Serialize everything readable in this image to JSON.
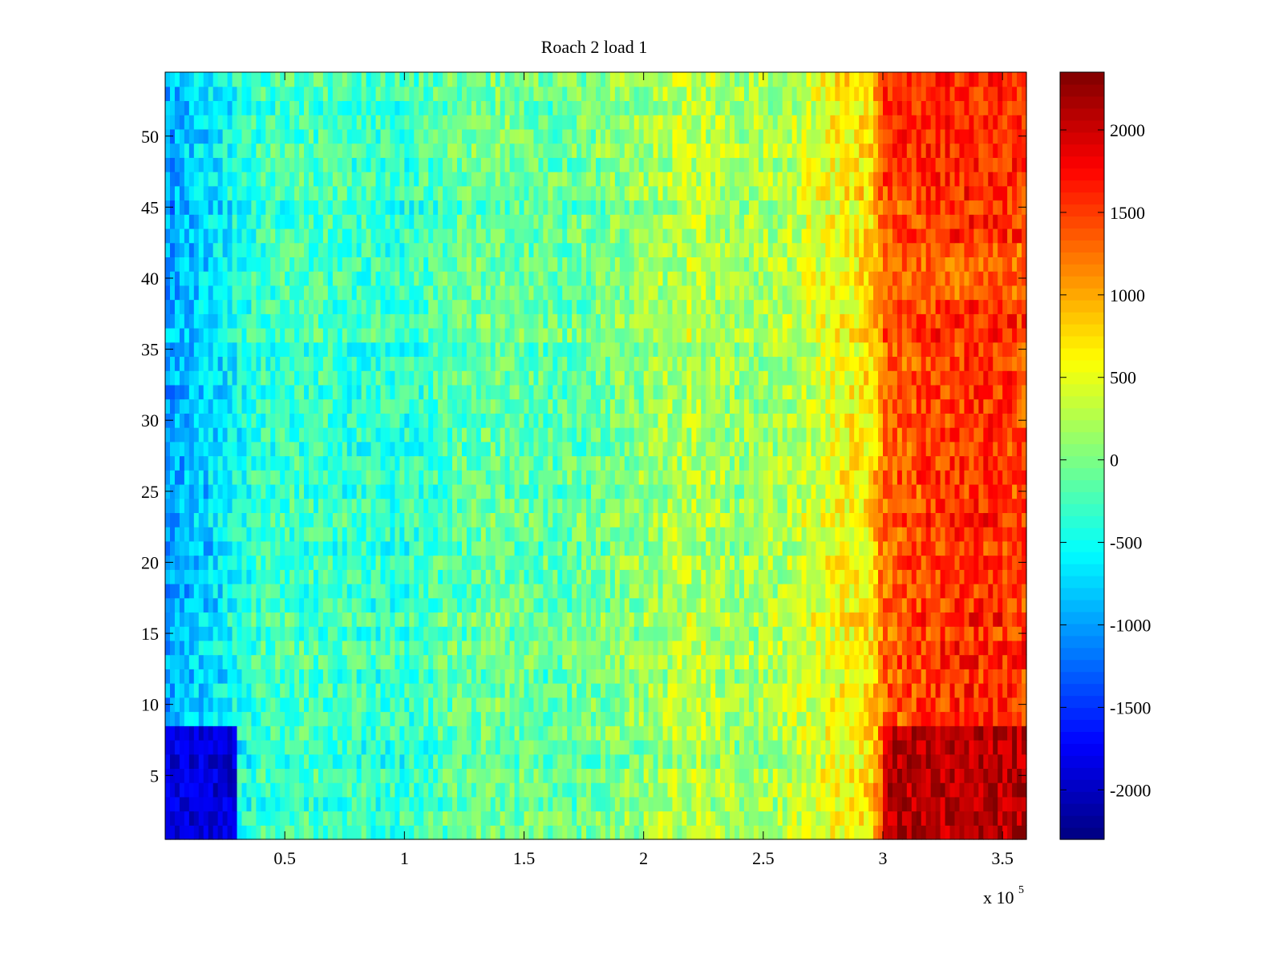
{
  "chart_data": {
    "type": "heatmap",
    "title": "Roach 2 load 1",
    "xlabel": "",
    "ylabel": "",
    "x_range": [
      0,
      360000
    ],
    "y_range": [
      0.5,
      54.5
    ],
    "x_ticks": [
      50000,
      100000,
      150000,
      200000,
      250000,
      300000,
      350000
    ],
    "x_tick_labels": [
      "0.5",
      "1",
      "1.5",
      "2",
      "2.5",
      "3",
      "3.5"
    ],
    "x_exponent_base": "x 10",
    "x_exponent": "5",
    "y_ticks": [
      5,
      10,
      15,
      20,
      25,
      30,
      35,
      40,
      45,
      50
    ],
    "y_tick_labels": [
      "5",
      "10",
      "15",
      "20",
      "25",
      "30",
      "35",
      "40",
      "45",
      "50"
    ],
    "rows": 54,
    "colormap": "jet",
    "color_range": [
      -2300,
      2350
    ],
    "colorbar_ticks": [
      -2000,
      -1500,
      -1000,
      -500,
      0,
      500,
      1000,
      1500,
      2000
    ],
    "colorbar_tick_labels": [
      "-2000",
      "-1500",
      "-1000",
      "-500",
      "0",
      "500",
      "1000",
      "1500",
      "2000"
    ],
    "column_profile": {
      "x": [
        0,
        20000,
        40000,
        60000,
        80000,
        100000,
        120000,
        140000,
        160000,
        180000,
        200000,
        220000,
        240000,
        260000,
        280000,
        295000,
        300000,
        320000,
        340000,
        360000
      ],
      "values": [
        -1000,
        -700,
        -300,
        -250,
        -300,
        -350,
        -150,
        -50,
        -150,
        -50,
        100,
        300,
        150,
        250,
        550,
        750,
        1300,
        1500,
        1600,
        1500
      ]
    },
    "hot_rows": {
      "bottom_band": {
        "rows": [
          1,
          8
        ],
        "value_from_300000": 2100
      },
      "top_band": {
        "rows": [
          47,
          54
        ],
        "value_from_300000": 1600
      },
      "mid_band": {
        "rows": [
          39,
          42
        ],
        "value_from_300000": 1300
      }
    },
    "cold_rows": {
      "rows": [
        1,
        8
      ],
      "x_range": [
        0,
        30000
      ],
      "value": -1900
    }
  }
}
